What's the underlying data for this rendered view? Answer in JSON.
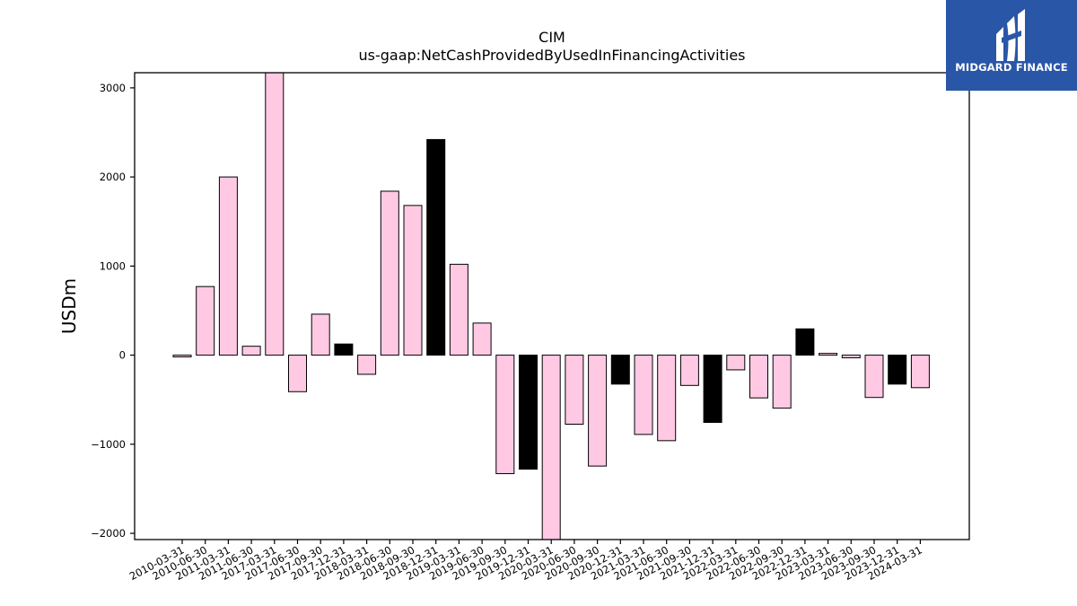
{
  "chart_data": {
    "type": "bar",
    "title": "CIM",
    "subtitle": "us-gaap:NetCashProvidedByUsedInFinancingActivities",
    "xlabel": "",
    "ylabel": "USDm",
    "ylim": [
      -2070,
      3170
    ],
    "yticks": [
      -2000,
      -1000,
      0,
      1000,
      2000,
      3000
    ],
    "ytick_labels": [
      "−2000",
      "−1000",
      "0",
      "1000",
      "2000",
      "3000"
    ],
    "grid": false,
    "colors": {
      "bar": "#ffc9e4",
      "highlight": "#000000",
      "edge": "#000000"
    },
    "categories": [
      "2010-03-31",
      "2010-06-30",
      "2011-03-31",
      "2011-06-30",
      "2017-03-31",
      "2017-06-30",
      "2017-09-30",
      "2017-12-31",
      "2018-03-31",
      "2018-06-30",
      "2018-09-30",
      "2018-12-31",
      "2019-03-31",
      "2019-06-30",
      "2019-09-30",
      "2019-12-31",
      "2020-03-31",
      "2020-06-30",
      "2020-09-30",
      "2020-12-31",
      "2021-03-31",
      "2021-06-30",
      "2021-09-30",
      "2021-12-31",
      "2022-03-31",
      "2022-06-30",
      "2022-09-30",
      "2022-12-31",
      "2023-03-31",
      "2023-06-30",
      "2023-09-30",
      "2023-12-31",
      "2024-03-31"
    ],
    "values": [
      -20,
      770,
      2000,
      100,
      3200,
      -410,
      460,
      125,
      -215,
      1840,
      1680,
      2420,
      1020,
      360,
      -1330,
      -1280,
      -2200,
      -775,
      -1245,
      -325,
      -890,
      -960,
      -340,
      -755,
      -165,
      -480,
      -595,
      295,
      20,
      -30,
      -475,
      -325,
      -365
    ],
    "highlight": [
      false,
      false,
      false,
      false,
      false,
      false,
      false,
      true,
      false,
      false,
      false,
      true,
      false,
      false,
      false,
      true,
      false,
      false,
      false,
      true,
      false,
      false,
      false,
      true,
      false,
      false,
      false,
      true,
      false,
      false,
      false,
      true,
      false
    ]
  },
  "logo": {
    "text": "MIDGARD FINANCE",
    "icon": "midgard-logo-icon",
    "color": "#2a56a8"
  }
}
